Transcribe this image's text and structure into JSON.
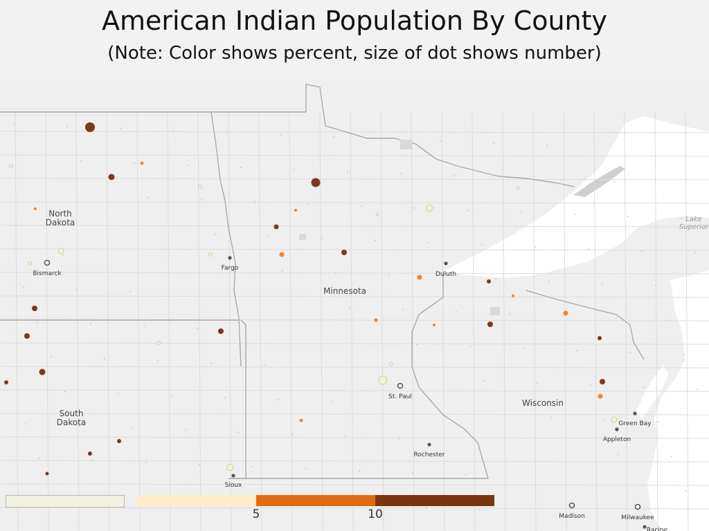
{
  "title": "American Indian Population By County",
  "subtitle": "(Note: Color shows percent, size of dot shows number)",
  "states": [
    {
      "name_line1": "North",
      "name_line2": "Dakota"
    },
    {
      "name_line1": "South",
      "name_line2": "Dakota"
    },
    {
      "name_line1": "Minnesota",
      "name_line2": ""
    },
    {
      "name_line1": "Wisconsin",
      "name_line2": ""
    }
  ],
  "cities": [
    "Bismarck",
    "Fargo",
    "Duluth",
    "St. Paul",
    "Rochester",
    "Green Bay",
    "Appleton",
    "Madison",
    "Milwaukee",
    "Racine",
    "Sioux"
  ],
  "water_labels": {
    "lake_line1": "Lake",
    "lake_line2": "Superior"
  },
  "legend": {
    "ticks": [
      "5",
      "10"
    ],
    "bin_colors": [
      "#f3f1e4",
      "#fdeec7",
      "#e06a10",
      "#7a3510"
    ]
  },
  "dot_colors": {
    "low": "#f6f1d6",
    "mid": "#e8873a",
    "high": "#7a3a1c"
  }
}
